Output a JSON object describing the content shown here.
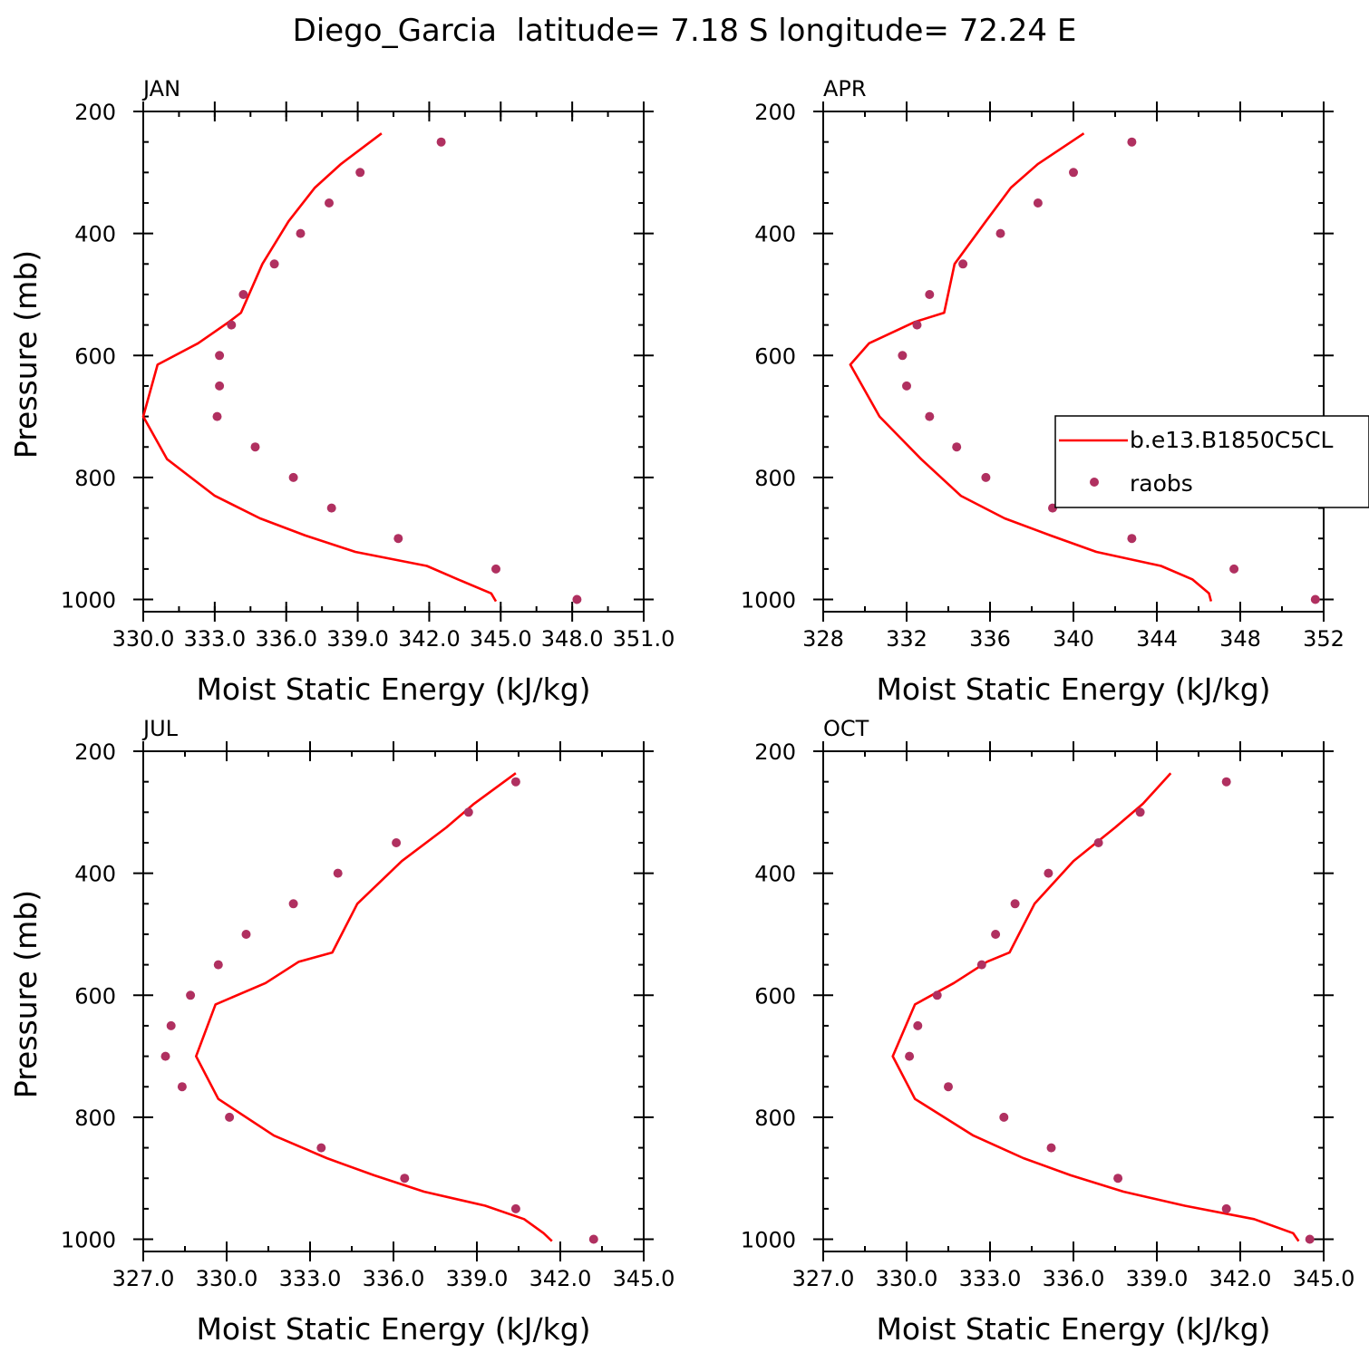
{
  "title": "Diego_Garcia  latitude= 7.18 S longitude= 72.24 E",
  "colors": {
    "model": "#ff0000",
    "obs": "#b03060",
    "axis": "#000000"
  },
  "legend": {
    "entries": [
      "b.e13.B1850C5CL",
      "raobs"
    ]
  },
  "chart_data": [
    {
      "type": "line",
      "panel": "JAN",
      "xlabel": "Moist Static Energy (kJ/kg)",
      "ylabel": "Pressure (mb)",
      "xlim": [
        330,
        351
      ],
      "xticks": [
        330,
        333,
        336,
        339,
        342,
        345,
        348,
        351
      ],
      "xtick_labels": [
        "330.0",
        "333.0",
        "336.0",
        "339.0",
        "342.0",
        "345.0",
        "348.0",
        "351.0"
      ],
      "ylim": [
        200,
        1020
      ],
      "yticks": [
        200,
        400,
        600,
        800,
        1000
      ],
      "ytick_labels": [
        "200",
        "400",
        "600",
        "800",
        "1000"
      ],
      "series": [
        {
          "name": "b.e13.B1850C5CL",
          "kind": "line",
          "x": [
            340.0,
            338.3,
            337.2,
            336.1,
            335.0,
            334.1,
            333.6,
            332.3,
            330.6,
            330.0,
            331.0,
            333.0,
            334.9,
            336.8,
            338.9,
            341.9,
            343.2,
            344.6,
            344.8
          ],
          "y": [
            236,
            286,
            325,
            380,
            450,
            530,
            545,
            580,
            615,
            700,
            770,
            830,
            867,
            895,
            922,
            945,
            967,
            990,
            1003
          ]
        },
        {
          "name": "raobs",
          "kind": "scatter",
          "x": [
            342.5,
            339.1,
            337.8,
            336.6,
            335.5,
            334.2,
            333.7,
            333.2,
            333.2,
            333.1,
            334.7,
            336.3,
            337.9,
            340.7,
            344.8,
            348.2
          ],
          "y": [
            250,
            300,
            350,
            400,
            450,
            500,
            550,
            600,
            650,
            700,
            750,
            800,
            850,
            900,
            950,
            1000
          ]
        }
      ]
    },
    {
      "type": "line",
      "panel": "APR",
      "xlabel": "Moist Static Energy (kJ/kg)",
      "ylabel": "",
      "xlim": [
        328,
        352
      ],
      "xticks": [
        328,
        332,
        336,
        340,
        344,
        348,
        352
      ],
      "xtick_labels": [
        "328",
        "332",
        "336",
        "340",
        "344",
        "348",
        "352"
      ],
      "ylim": [
        200,
        1020
      ],
      "yticks": [
        200,
        400,
        600,
        800,
        1000
      ],
      "ytick_labels": [
        "200",
        "400",
        "600",
        "800",
        "1000"
      ],
      "series": [
        {
          "name": "b.e13.B1850C5CL",
          "kind": "line",
          "x": [
            340.5,
            338.3,
            337.0,
            335.8,
            334.3,
            333.8,
            332.4,
            330.2,
            329.3,
            330.7,
            332.7,
            334.6,
            336.7,
            338.9,
            341.1,
            344.2,
            345.7,
            346.5,
            346.6
          ],
          "y": [
            236,
            286,
            325,
            380,
            450,
            530,
            545,
            580,
            615,
            700,
            770,
            830,
            867,
            895,
            922,
            945,
            967,
            990,
            1003
          ]
        },
        {
          "name": "raobs",
          "kind": "scatter",
          "x": [
            342.8,
            340.0,
            338.3,
            336.5,
            334.7,
            333.1,
            332.5,
            331.8,
            332.0,
            333.1,
            334.4,
            335.8,
            339.0,
            342.8,
            347.7,
            351.6
          ],
          "y": [
            250,
            300,
            350,
            400,
            450,
            500,
            550,
            600,
            650,
            700,
            750,
            800,
            850,
            900,
            950,
            1000
          ]
        }
      ]
    },
    {
      "type": "line",
      "panel": "JUL",
      "xlabel": "Moist Static Energy (kJ/kg)",
      "ylabel": "Pressure (mb)",
      "xlim": [
        327,
        345
      ],
      "xticks": [
        327,
        330,
        333,
        336,
        339,
        342,
        345
      ],
      "xtick_labels": [
        "327.0",
        "330.0",
        "333.0",
        "336.0",
        "339.0",
        "342.0",
        "345.0"
      ],
      "ylim": [
        200,
        1020
      ],
      "yticks": [
        200,
        400,
        600,
        800,
        1000
      ],
      "ytick_labels": [
        "200",
        "400",
        "600",
        "800",
        "1000"
      ],
      "series": [
        {
          "name": "b.e13.B1850C5CL",
          "kind": "line",
          "x": [
            340.4,
            338.9,
            337.9,
            336.3,
            334.7,
            333.8,
            332.6,
            331.4,
            329.6,
            328.9,
            329.7,
            331.7,
            333.6,
            335.3,
            337.1,
            339.3,
            340.7,
            341.4,
            341.7
          ],
          "y": [
            236,
            286,
            325,
            380,
            450,
            530,
            545,
            580,
            615,
            700,
            770,
            830,
            867,
            895,
            922,
            945,
            967,
            990,
            1003
          ]
        },
        {
          "name": "raobs",
          "kind": "scatter",
          "x": [
            340.4,
            338.7,
            336.1,
            334.0,
            332.4,
            330.7,
            329.7,
            328.7,
            328.0,
            327.8,
            328.4,
            330.1,
            333.4,
            336.4,
            340.4,
            343.2
          ],
          "y": [
            250,
            300,
            350,
            400,
            450,
            500,
            550,
            600,
            650,
            700,
            750,
            800,
            850,
            900,
            950,
            1000
          ]
        }
      ]
    },
    {
      "type": "line",
      "panel": "OCT",
      "xlabel": "Moist Static Energy (kJ/kg)",
      "ylabel": "",
      "xlim": [
        327,
        345
      ],
      "xticks": [
        327,
        330,
        333,
        336,
        339,
        342,
        345
      ],
      "xtick_labels": [
        "327.0",
        "330.0",
        "333.0",
        "336.0",
        "339.0",
        "342.0",
        "345.0"
      ],
      "ylim": [
        200,
        1020
      ],
      "yticks": [
        200,
        400,
        600,
        800,
        1000
      ],
      "ytick_labels": [
        "200",
        "400",
        "600",
        "800",
        "1000"
      ],
      "series": [
        {
          "name": "b.e13.B1850C5CL",
          "kind": "line",
          "x": [
            339.5,
            338.5,
            337.5,
            336.0,
            334.6,
            333.7,
            332.9,
            331.7,
            330.3,
            329.5,
            330.3,
            332.4,
            334.2,
            335.9,
            337.8,
            340.0,
            342.5,
            343.9,
            344.1
          ],
          "y": [
            236,
            286,
            325,
            380,
            450,
            530,
            545,
            580,
            615,
            700,
            770,
            830,
            867,
            895,
            922,
            945,
            967,
            990,
            1003
          ]
        },
        {
          "name": "raobs",
          "kind": "scatter",
          "x": [
            341.5,
            338.4,
            336.9,
            335.1,
            333.9,
            333.2,
            332.7,
            331.1,
            330.4,
            330.1,
            331.5,
            333.5,
            335.2,
            337.6,
            341.5,
            344.5
          ],
          "y": [
            250,
            300,
            350,
            400,
            450,
            500,
            550,
            600,
            650,
            700,
            750,
            800,
            850,
            900,
            950,
            1000
          ]
        }
      ]
    }
  ]
}
